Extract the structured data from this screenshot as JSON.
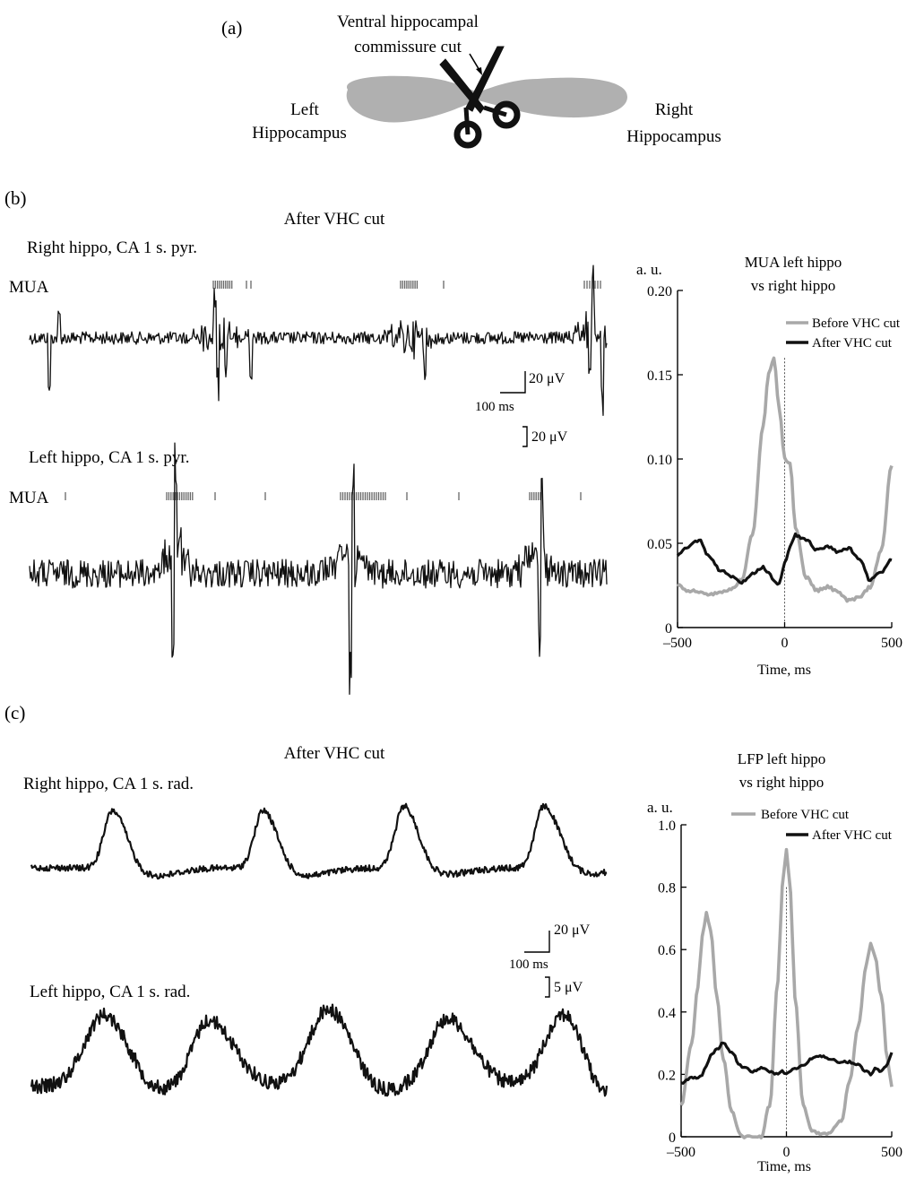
{
  "panel_a": {
    "label": "(a)",
    "cut_label_line1": "Ventral hippocampal",
    "cut_label_line2": "commissure cut",
    "left_line1": "Left",
    "left_line2": "Hippocampus",
    "right_line1": "Right",
    "right_line2": "Hippocampus",
    "shape_color": "#b0b0b0",
    "scissors_color": "#111111"
  },
  "panel_b": {
    "label": "(b)",
    "title": "After VHC cut",
    "right_trace_label": "Right hippo, CA 1 s. pyr.",
    "left_trace_label": "Left hippo, CA 1 s. pyr.",
    "mua_label_top": "MUA",
    "mua_label_bottom": "MUA",
    "scale_v1": "20 μV",
    "scale_t": "100 ms",
    "scale_v2": "20 μV"
  },
  "panel_c": {
    "label": "(c)",
    "title": "After VHC cut",
    "right_trace_label": "Right hippo, CA 1 s. rad.",
    "left_trace_label": "Left hippo, CA 1 s. rad.",
    "scale_v1": "20 μV",
    "scale_t": "100 ms",
    "scale_v2": "5 μV"
  },
  "chart_data": [
    {
      "type": "line",
      "title": "MUA left hippo",
      "subtitle": "vs right hippo",
      "ylabel": "a. u.",
      "xlabel": "Time, ms",
      "xlim": [
        -500,
        500
      ],
      "ylim": [
        0,
        0.2
      ],
      "xticks": [
        "–500",
        "0",
        "500"
      ],
      "yticks": [
        "0",
        "0.05",
        "0.10",
        "0.15",
        "0.20"
      ],
      "legend_placement": "top-right",
      "x": [
        -500,
        -450,
        -400,
        -350,
        -300,
        -250,
        -200,
        -150,
        -100,
        -75,
        -50,
        -25,
        0,
        25,
        50,
        100,
        150,
        200,
        250,
        300,
        350,
        400,
        450,
        500
      ],
      "series": [
        {
          "name": "Before VHC cut",
          "color": "#a8a8a8",
          "values": [
            0.025,
            0.022,
            0.021,
            0.02,
            0.021,
            0.023,
            0.028,
            0.055,
            0.12,
            0.15,
            0.16,
            0.13,
            0.1,
            0.098,
            0.06,
            0.03,
            0.022,
            0.024,
            0.021,
            0.016,
            0.018,
            0.024,
            0.045,
            0.096
          ]
        },
        {
          "name": "After VHC cut",
          "color": "#111111",
          "values": [
            0.043,
            0.048,
            0.052,
            0.042,
            0.034,
            0.03,
            0.027,
            0.032,
            0.036,
            0.032,
            0.028,
            0.026,
            0.038,
            0.048,
            0.055,
            0.052,
            0.046,
            0.048,
            0.045,
            0.047,
            0.04,
            0.028,
            0.033,
            0.04
          ]
        }
      ]
    },
    {
      "type": "line",
      "title": "LFP left hippo",
      "subtitle": "vs right hippo",
      "ylabel": "a. u.",
      "xlabel": "Time, ms",
      "xlim": [
        -500,
        500
      ],
      "ylim": [
        0,
        1.0
      ],
      "xticks": [
        "–500",
        "0",
        "500"
      ],
      "yticks": [
        "0",
        "0.2",
        "0.4",
        "0.6",
        "0.8",
        "1.0"
      ],
      "legend_placement": "top-right",
      "x": [
        -500,
        -450,
        -420,
        -400,
        -380,
        -360,
        -330,
        -300,
        -260,
        -220,
        -200,
        -160,
        -120,
        -80,
        -40,
        -20,
        0,
        20,
        40,
        80,
        120,
        160,
        200,
        260,
        300,
        340,
        380,
        400,
        420,
        450,
        480,
        500
      ],
      "series": [
        {
          "name": "Before VHC cut",
          "color": "#a8a8a8",
          "values": [
            0.1,
            0.3,
            0.48,
            0.64,
            0.72,
            0.66,
            0.45,
            0.25,
            0.08,
            0.01,
            0.0,
            0.0,
            0.0,
            0.1,
            0.5,
            0.8,
            0.92,
            0.78,
            0.45,
            0.1,
            0.02,
            0.01,
            0.01,
            0.05,
            0.18,
            0.35,
            0.55,
            0.62,
            0.58,
            0.45,
            0.25,
            0.16
          ]
        },
        {
          "name": "After VHC cut",
          "color": "#111111",
          "values": [
            0.17,
            0.19,
            0.19,
            0.2,
            0.23,
            0.26,
            0.28,
            0.3,
            0.27,
            0.23,
            0.22,
            0.21,
            0.22,
            0.21,
            0.2,
            0.21,
            0.2,
            0.21,
            0.22,
            0.23,
            0.25,
            0.26,
            0.25,
            0.24,
            0.24,
            0.23,
            0.21,
            0.2,
            0.22,
            0.21,
            0.23,
            0.27
          ]
        }
      ]
    }
  ]
}
